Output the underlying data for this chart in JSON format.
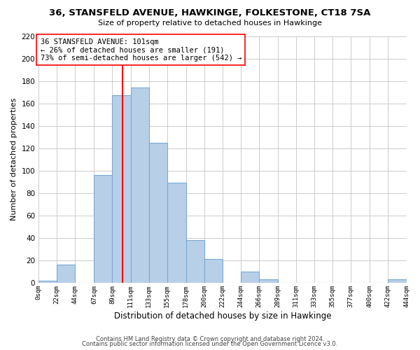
{
  "title": "36, STANSFELD AVENUE, HAWKINGE, FOLKESTONE, CT18 7SA",
  "subtitle": "Size of property relative to detached houses in Hawkinge",
  "xlabel": "Distribution of detached houses by size in Hawkinge",
  "ylabel": "Number of detached properties",
  "bar_color": "#b8cfe8",
  "bar_edge_color": "#7aaad0",
  "vline_x": 101,
  "vline_color": "red",
  "annotation_title": "36 STANSFELD AVENUE: 101sqm",
  "annotation_line1": "← 26% of detached houses are smaller (191)",
  "annotation_line2": "73% of semi-detached houses are larger (542) →",
  "bin_edges": [
    0,
    22,
    44,
    67,
    89,
    111,
    133,
    155,
    178,
    200,
    222,
    244,
    266,
    289,
    311,
    333,
    355,
    377,
    400,
    422,
    444
  ],
  "counts": [
    2,
    16,
    0,
    96,
    167,
    174,
    125,
    89,
    38,
    21,
    0,
    10,
    3,
    0,
    0,
    0,
    0,
    0,
    0,
    3
  ],
  "ylim": [
    0,
    220
  ],
  "yticks": [
    0,
    20,
    40,
    60,
    80,
    100,
    120,
    140,
    160,
    180,
    200,
    220
  ],
  "tick_labels": [
    "0sqm",
    "22sqm",
    "44sqm",
    "67sqm",
    "89sqm",
    "111sqm",
    "133sqm",
    "155sqm",
    "178sqm",
    "200sqm",
    "222sqm",
    "244sqm",
    "266sqm",
    "289sqm",
    "311sqm",
    "333sqm",
    "355sqm",
    "377sqm",
    "400sqm",
    "422sqm",
    "444sqm"
  ],
  "footer1": "Contains HM Land Registry data © Crown copyright and database right 2024.",
  "footer2": "Contains public sector information licensed under the Open Government Licence v3.0.",
  "bg_color": "#ffffff",
  "grid_color": "#cccccc"
}
